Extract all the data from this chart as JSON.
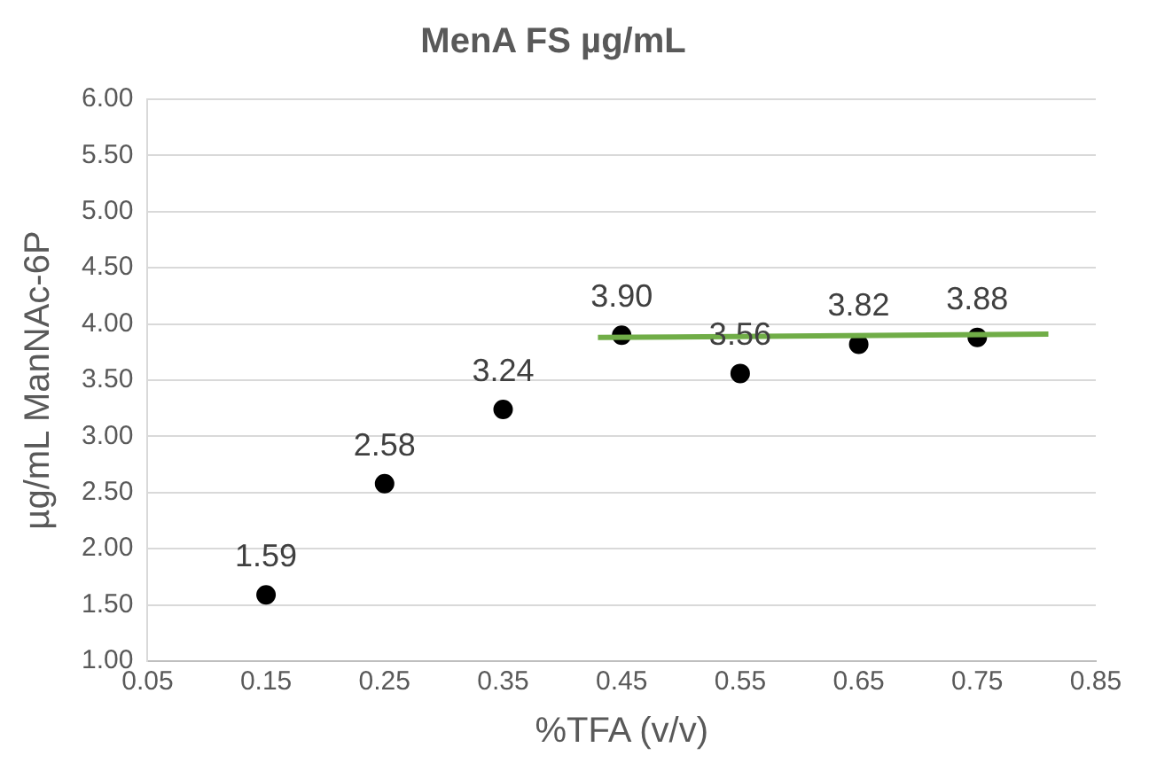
{
  "chart_data": {
    "type": "scatter",
    "title": "MenA FS µg/mL",
    "xlabel": "%TFA (v/v)",
    "ylabel": "µg/mL ManNAc-6P",
    "x": [
      0.15,
      0.25,
      0.35,
      0.45,
      0.55,
      0.65,
      0.75
    ],
    "series": [
      {
        "color": "#000000",
        "marker": "circle",
        "values": [
          1.59,
          2.58,
          3.24,
          3.9,
          3.56,
          3.82,
          3.88
        ],
        "value_labels": [
          "1.59",
          "2.58",
          "3.24",
          "3.90",
          "3.56",
          "3.82",
          "3.88"
        ]
      },
      {
        "type": "line",
        "color": "#70ad47",
        "marker": "none",
        "x": [
          0.43,
          0.81
        ],
        "values": [
          3.88,
          3.91
        ]
      }
    ],
    "xlim": [
      0.05,
      0.85
    ],
    "xticks": [
      0.05,
      0.15,
      0.25,
      0.35,
      0.45,
      0.55,
      0.65,
      0.75,
      0.85
    ],
    "ylim": [
      1,
      6
    ],
    "yticks": [
      {
        "value": 1,
        "label": "1.00"
      },
      {
        "value": 1.5,
        "label": "1.50"
      },
      {
        "value": 2,
        "label": "2.00"
      },
      {
        "value": 2.5,
        "label": "2.50"
      },
      {
        "value": 3,
        "label": "3.00"
      },
      {
        "value": 3.5,
        "label": "3.50"
      },
      {
        "value": 4,
        "label": "4.00"
      },
      {
        "value": 4.5,
        "label": "4.50"
      },
      {
        "value": 5,
        "label": "5.00"
      },
      {
        "value": 5.5,
        "label": "5.50"
      },
      {
        "value": 6,
        "label": "6.00"
      }
    ],
    "grid": "y",
    "legend": false
  }
}
